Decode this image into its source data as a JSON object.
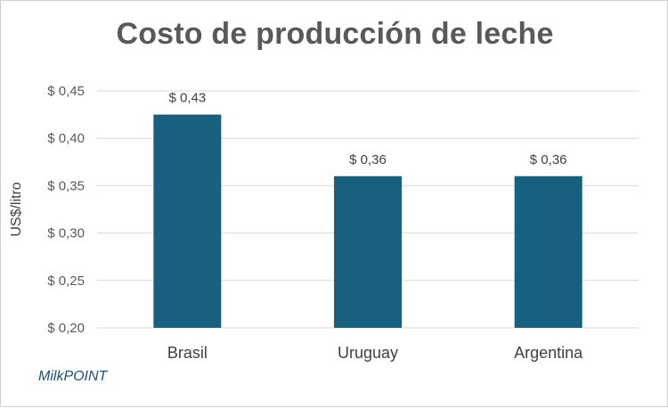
{
  "chart_data": {
    "type": "bar",
    "title": "Costo de producción de leche",
    "xlabel": "",
    "ylabel": "US$/litro",
    "categories": [
      "Brasil",
      "Uruguay",
      "Argentina"
    ],
    "values": [
      0.425,
      0.36,
      0.36
    ],
    "data_labels": [
      "$ 0,43",
      "$ 0,36",
      "$ 0,36"
    ],
    "ylim": [
      0.2,
      0.45
    ],
    "yticks": [
      0.2,
      0.25,
      0.3,
      0.35,
      0.4,
      0.45
    ],
    "ytick_labels": [
      "$ 0,20",
      "$ 0,25",
      "$ 0,30",
      "$ 0,35",
      "$ 0,40",
      "$ 0,45"
    ],
    "grid": true,
    "legend": "none",
    "bar_color": "#17607f",
    "grid_color": "#d9d9d9"
  },
  "source": "MilkPOINT"
}
